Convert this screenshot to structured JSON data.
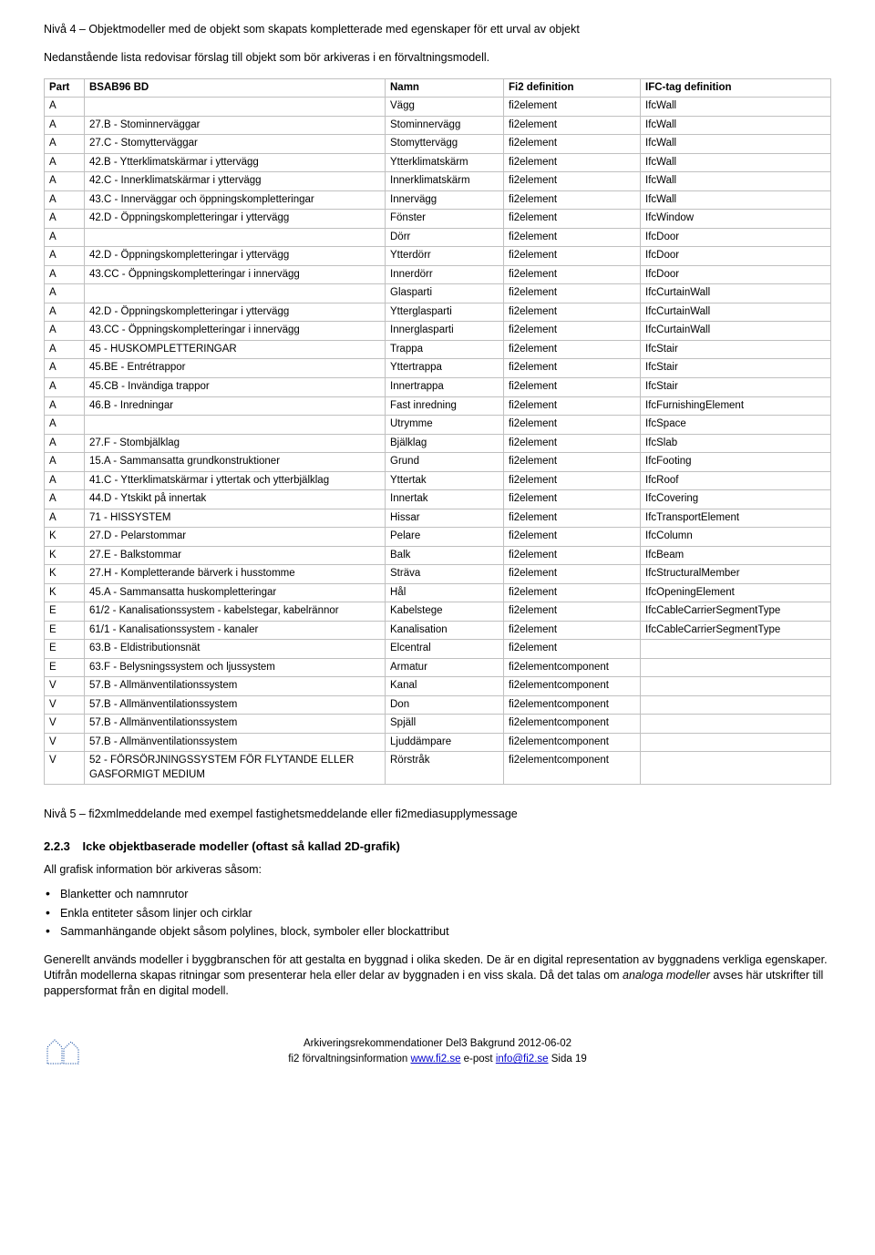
{
  "intro_line1": "Nivå 4 – Objektmodeller med de objekt som skapats kompletterade med egenskaper för ett urval av objekt",
  "intro_line2": "Nedanstående lista redovisar förslag till objekt som bör arkiveras i en förvaltningsmodell.",
  "headers": {
    "part": "Part",
    "bsab": "BSAB96 BD",
    "namn": "Namn",
    "fi2": "Fi2 definition",
    "ifc": "IFC-tag definition"
  },
  "rows": [
    {
      "part": "A",
      "bsab": "",
      "namn": "Vägg",
      "fi2": "fi2element",
      "ifc": "IfcWall"
    },
    {
      "part": "A",
      "bsab": "27.B - Stominnerväggar",
      "namn": "Stominnervägg",
      "fi2": "fi2element",
      "ifc": "IfcWall"
    },
    {
      "part": "A",
      "bsab": "27.C - Stomytterväggar",
      "namn": "Stomyttervägg",
      "fi2": "fi2element",
      "ifc": "IfcWall"
    },
    {
      "part": "A",
      "bsab": "42.B - Ytterklimatskärmar i yttervägg",
      "namn": "Ytterklimatskärm",
      "fi2": "fi2element",
      "ifc": "IfcWall"
    },
    {
      "part": "A",
      "bsab": "42.C - Innerklimatskärmar i yttervägg",
      "namn": "Innerklimatskärm",
      "fi2": "fi2element",
      "ifc": "IfcWall"
    },
    {
      "part": "A",
      "bsab": "43.C - Innerväggar och öppningskompletteringar",
      "namn": "Innervägg",
      "fi2": "fi2element",
      "ifc": "IfcWall"
    },
    {
      "part": "A",
      "bsab": "42.D - Öppningskompletteringar i yttervägg",
      "namn": "Fönster",
      "fi2": "fi2element",
      "ifc": "IfcWindow"
    },
    {
      "part": "A",
      "bsab": "",
      "namn": "Dörr",
      "fi2": "fi2element",
      "ifc": "IfcDoor"
    },
    {
      "part": "A",
      "bsab": "42.D - Öppningskompletteringar i yttervägg",
      "namn": "Ytterdörr",
      "fi2": "fi2element",
      "ifc": "IfcDoor"
    },
    {
      "part": "A",
      "bsab": "43.CC - Öppningskompletteringar i innervägg",
      "namn": "Innerdörr",
      "fi2": "fi2element",
      "ifc": "IfcDoor"
    },
    {
      "part": "A",
      "bsab": "",
      "namn": "Glasparti",
      "fi2": "fi2element",
      "ifc": "IfcCurtainWall"
    },
    {
      "part": "A",
      "bsab": "42.D - Öppningskompletteringar i yttervägg",
      "namn": "Ytterglasparti",
      "fi2": "fi2element",
      "ifc": "IfcCurtainWall"
    },
    {
      "part": "A",
      "bsab": "43.CC - Öppningskompletteringar i innervägg",
      "namn": "Innerglasparti",
      "fi2": "fi2element",
      "ifc": "IfcCurtainWall"
    },
    {
      "part": "A",
      "bsab": "45 - HUSKOMPLETTERINGAR",
      "namn": "Trappa",
      "fi2": "fi2element",
      "ifc": "IfcStair"
    },
    {
      "part": "A",
      "bsab": "45.BE - Entrétrappor",
      "namn": "Yttertrappa",
      "fi2": "fi2element",
      "ifc": "IfcStair"
    },
    {
      "part": "A",
      "bsab": "45.CB - Invändiga trappor",
      "namn": "Innertrappa",
      "fi2": "fi2element",
      "ifc": "IfcStair"
    },
    {
      "part": "A",
      "bsab": "46.B - Inredningar",
      "namn": "Fast inredning",
      "fi2": "fi2element",
      "ifc": "IfcFurnishingElement"
    },
    {
      "part": "A",
      "bsab": "",
      "namn": "Utrymme",
      "fi2": "fi2element",
      "ifc": "IfcSpace"
    },
    {
      "part": "A",
      "bsab": "27.F - Stombjälklag",
      "namn": "Bjälklag",
      "fi2": "fi2element",
      "ifc": "IfcSlab"
    },
    {
      "part": "A",
      "bsab": "15.A - Sammansatta grundkonstruktioner",
      "namn": "Grund",
      "fi2": "fi2element",
      "ifc": "IfcFooting"
    },
    {
      "part": "A",
      "bsab": "41.C - Ytterklimatskärmar i yttertak och ytterbjälklag",
      "namn": "Yttertak",
      "fi2": "fi2element",
      "ifc": "IfcRoof"
    },
    {
      "part": "A",
      "bsab": "44.D - Ytskikt på innertak",
      "namn": "Innertak",
      "fi2": "fi2element",
      "ifc": "IfcCovering"
    },
    {
      "part": "A",
      "bsab": "71 - HISSYSTEM",
      "namn": "Hissar",
      "fi2": "fi2element",
      "ifc": "IfcTransportElement"
    },
    {
      "part": "K",
      "bsab": "27.D - Pelarstommar",
      "namn": "Pelare",
      "fi2": "fi2element",
      "ifc": "IfcColumn"
    },
    {
      "part": "K",
      "bsab": "27.E - Balkstommar",
      "namn": "Balk",
      "fi2": "fi2element",
      "ifc": "IfcBeam"
    },
    {
      "part": "K",
      "bsab": "27.H - Kompletterande bärverk i husstomme",
      "namn": "Sträva",
      "fi2": "fi2element",
      "ifc": "IfcStructuralMember"
    },
    {
      "part": "K",
      "bsab": "45.A - Sammansatta huskompletteringar",
      "namn": "Hål",
      "fi2": "fi2element",
      "ifc": "IfcOpeningElement"
    },
    {
      "part": "E",
      "bsab": "61/2 - Kanalisationssystem - kabelstegar, kabelrännor",
      "namn": "Kabelstege",
      "fi2": "fi2element",
      "ifc": "IfcCableCarrierSegmentType"
    },
    {
      "part": "E",
      "bsab": "61/1 - Kanalisationssystem - kanaler",
      "namn": "Kanalisation",
      "fi2": "fi2element",
      "ifc": "IfcCableCarrierSegmentType"
    },
    {
      "part": "E",
      "bsab": "63.B - Eldistributionsnät",
      "namn": "Elcentral",
      "fi2": "fi2element",
      "ifc": ""
    },
    {
      "part": "E",
      "bsab": "63.F - Belysningssystem och ljussystem",
      "namn": "Armatur",
      "fi2": "fi2elementcomponent",
      "ifc": ""
    },
    {
      "part": "V",
      "bsab": "57.B - Allmänventilationssystem",
      "namn": "Kanal",
      "fi2": "fi2elementcomponent",
      "ifc": ""
    },
    {
      "part": "V",
      "bsab": "57.B - Allmänventilationssystem",
      "namn": "Don",
      "fi2": "fi2elementcomponent",
      "ifc": ""
    },
    {
      "part": "V",
      "bsab": "57.B - Allmänventilationssystem",
      "namn": "Spjäll",
      "fi2": "fi2elementcomponent",
      "ifc": ""
    },
    {
      "part": "V",
      "bsab": "57.B - Allmänventilationssystem",
      "namn": "Ljuddämpare",
      "fi2": "fi2elementcomponent",
      "ifc": ""
    },
    {
      "part": "V",
      "bsab": "52 - FÖRSÖRJNINGSSYSTEM FÖR FLYTANDE ELLER GASFORMIGT MEDIUM",
      "namn": "Rörstråk",
      "fi2": "fi2elementcomponent",
      "ifc": ""
    }
  ],
  "niva5": "Nivå 5 – fi2xmlmeddelande med exempel fastighetsmeddelande eller fi2mediasupplymessage",
  "section": {
    "num": "2.2.3",
    "title": "Icke objektbaserade modeller (oftast så kallad 2D-grafik)"
  },
  "after_heading": "All grafisk information bör arkiveras såsom:",
  "bullets": [
    "Blanketter och namnrutor",
    "Enkla entiteter såsom linjer och cirklar",
    "Sammanhängande objekt såsom polylines, block, symboler eller blockattribut"
  ],
  "paragraph": {
    "p1a": "Generellt används modeller i byggbranschen för att gestalta en byggnad i olika skeden. De är en digital representation av byggnadens verkliga egenskaper. Utifrån modellerna skapas ritningar som presenterar hela eller delar av byggnaden i en viss skala. Då det talas om ",
    "p1italic": "analoga modeller",
    "p1b": " avses här utskrifter till pappersformat från en digital modell."
  },
  "footer": {
    "line1": "Arkiveringsrekommendationer Del3 Bakgrund 2012-06-02",
    "org": "fi2 förvaltningsinformation ",
    "url1": "www.fi2.se",
    "mid": " e-post ",
    "url2": "info@fi2.se",
    "sida": " Sida 19"
  },
  "colors": {
    "border": "#c0c0c0",
    "link": "#0000cc",
    "logo": "#1a4fa3"
  }
}
